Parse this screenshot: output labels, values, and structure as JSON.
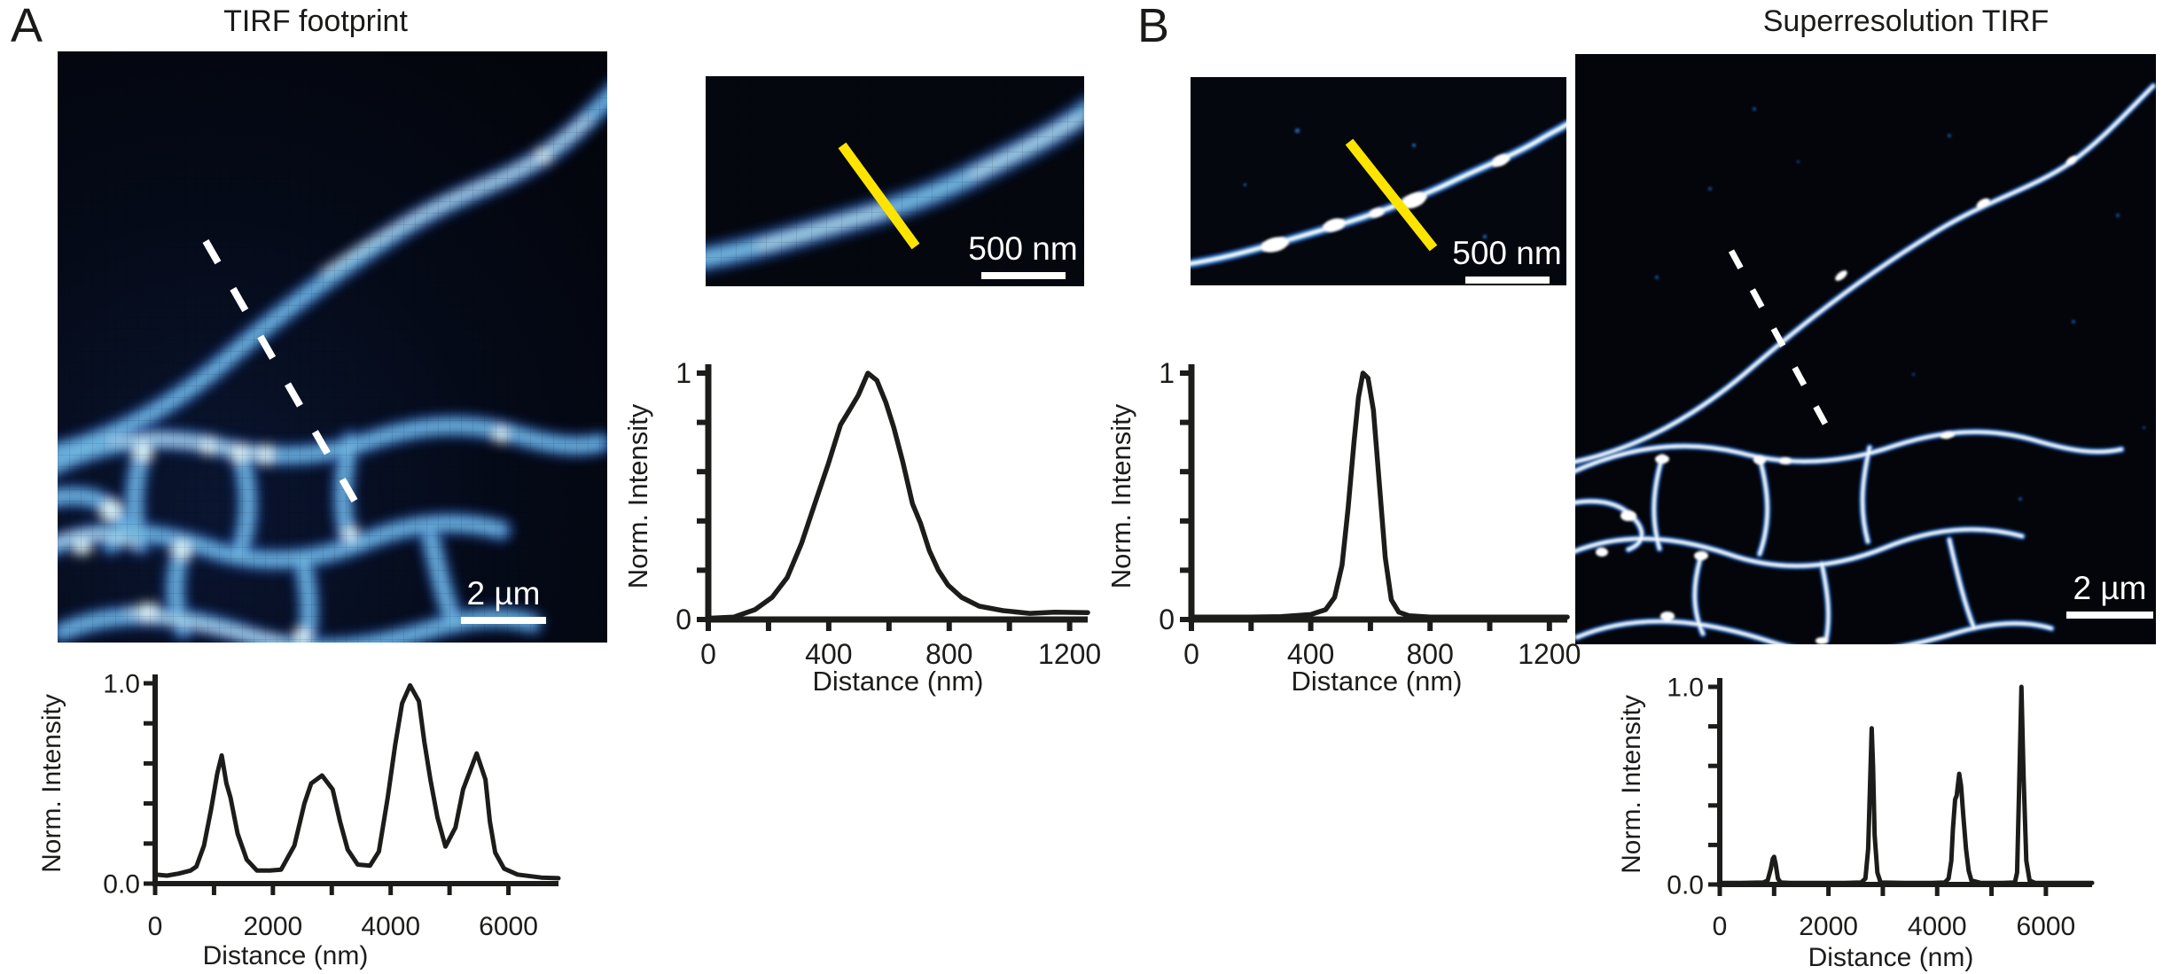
{
  "panels": {
    "A": {
      "label": "A",
      "title": "TIRF footprint",
      "image_scalebar": "2 µm",
      "inset_scalebar": "500 nm"
    },
    "B": {
      "label": "B",
      "title": "Superresolution TIRF",
      "image_scalebar": "2 µm",
      "inset_scalebar": "500 nm"
    }
  },
  "colors": {
    "ink": "#1c1c1a",
    "profile_marker_yellow": "#ffe400",
    "scalebar_white": "#ffffff",
    "mito_halo_blue": "#16357a",
    "mito_mid_blue": "#2f6fc4",
    "mito_core_cyan": "#e8fcfc",
    "image_background": "#04070e"
  },
  "chart_data": [
    {
      "id": "tirf-footprint-profile",
      "type": "line",
      "title": "",
      "xlabel": "Distance (nm)",
      "ylabel": "Norm. Intensity",
      "xlim": [
        0,
        6850
      ],
      "ylim": [
        0,
        1
      ],
      "grid": false,
      "legend": "none",
      "xticks": [
        0,
        2000,
        4000,
        6000
      ],
      "xtick_labels": [
        "0",
        "2000",
        "4000",
        "6000"
      ],
      "xminor": [
        1000,
        3000,
        5000
      ],
      "yticks": [
        {
          "v": 0,
          "label": "0.0"
        },
        {
          "v": 1,
          "label": "1.0"
        }
      ],
      "yminor": [
        0.2,
        0.4,
        0.6,
        0.8
      ],
      "x": [
        0,
        200,
        400,
        600,
        700,
        830,
        950,
        1055,
        1130,
        1210,
        1280,
        1400,
        1555,
        1730,
        1950,
        2140,
        2365,
        2535,
        2650,
        2835,
        3015,
        3140,
        3270,
        3440,
        3650,
        3800,
        3950,
        4075,
        4195,
        4330,
        4480,
        4570,
        4675,
        4795,
        4930,
        5100,
        5230,
        5460,
        5610,
        5685,
        5775,
        5925,
        6155,
        6560,
        6850
      ],
      "y": [
        0.045,
        0.04,
        0.05,
        0.065,
        0.085,
        0.19,
        0.37,
        0.55,
        0.64,
        0.5,
        0.43,
        0.25,
        0.12,
        0.065,
        0.065,
        0.07,
        0.19,
        0.4,
        0.5,
        0.54,
        0.47,
        0.31,
        0.17,
        0.095,
        0.09,
        0.16,
        0.43,
        0.69,
        0.9,
        0.99,
        0.91,
        0.71,
        0.52,
        0.33,
        0.185,
        0.28,
        0.47,
        0.65,
        0.52,
        0.31,
        0.155,
        0.075,
        0.045,
        0.03,
        0.027
      ]
    },
    {
      "id": "tirf-zoom-profile",
      "type": "line",
      "title": "",
      "xlabel": "Distance (nm)",
      "ylabel": "Norm. Intensity",
      "xlim": [
        0,
        1260
      ],
      "ylim": [
        0,
        1
      ],
      "grid": false,
      "legend": "none",
      "xticks": [
        0,
        400,
        800,
        1200
      ],
      "xtick_labels": [
        "0",
        "400",
        "800",
        "1200"
      ],
      "xminor": [
        200,
        600,
        1000
      ],
      "yticks": [
        {
          "v": 0,
          "label": "0"
        },
        {
          "v": 1,
          "label": "1"
        }
      ],
      "yminor": [
        0.2,
        0.4,
        0.6,
        0.8
      ],
      "x": [
        0,
        85,
        155,
        212,
        262,
        310,
        354,
        398,
        439,
        469,
        498,
        530,
        560,
        590,
        616,
        646,
        678,
        705,
        734,
        764,
        796,
        841,
        900,
        979,
        1068,
        1150,
        1260
      ],
      "y": [
        0.005,
        0.01,
        0.04,
        0.09,
        0.17,
        0.31,
        0.47,
        0.63,
        0.79,
        0.85,
        0.91,
        1.0,
        0.97,
        0.88,
        0.78,
        0.64,
        0.47,
        0.39,
        0.28,
        0.2,
        0.14,
        0.09,
        0.054,
        0.036,
        0.025,
        0.03,
        0.028
      ]
    },
    {
      "id": "sr-zoom-profile",
      "type": "line",
      "title": "",
      "xlabel": "Distance (nm)",
      "ylabel": "Norm. Intensity",
      "xlim": [
        0,
        1260
      ],
      "ylim": [
        0,
        1
      ],
      "grid": false,
      "legend": "none",
      "xticks": [
        0,
        400,
        800,
        1200
      ],
      "xtick_labels": [
        "0",
        "400",
        "800",
        "1200"
      ],
      "xminor": [
        200,
        600,
        1000
      ],
      "yticks": [
        {
          "v": 0,
          "label": "0"
        },
        {
          "v": 1,
          "label": "1"
        }
      ],
      "yminor": [
        0.2,
        0.4,
        0.6,
        0.8
      ],
      "x": [
        0,
        100,
        200,
        300,
        400,
        450,
        480,
        505,
        525,
        545,
        560,
        575,
        592,
        610,
        630,
        650,
        670,
        695,
        730,
        800,
        900,
        1000,
        1100,
        1260
      ],
      "y": [
        0.01,
        0.01,
        0.01,
        0.012,
        0.02,
        0.04,
        0.09,
        0.22,
        0.45,
        0.72,
        0.9,
        1.0,
        0.98,
        0.85,
        0.55,
        0.25,
        0.08,
        0.03,
        0.015,
        0.01,
        0.01,
        0.01,
        0.01,
        0.01
      ]
    },
    {
      "id": "sr-profile",
      "type": "line",
      "title": "",
      "xlabel": "Distance (nm)",
      "ylabel": "Norm. Intensity",
      "xlim": [
        0,
        6850
      ],
      "ylim": [
        0,
        1
      ],
      "grid": false,
      "legend": "none",
      "xticks": [
        0,
        2000,
        4000,
        6000
      ],
      "xtick_labels": [
        "0",
        "2000",
        "4000",
        "6000"
      ],
      "xminor": [
        1000,
        3000,
        5000
      ],
      "yticks": [
        {
          "v": 0,
          "label": "0.0"
        },
        {
          "v": 1,
          "label": "1.0"
        }
      ],
      "yminor": [
        0.2,
        0.4,
        0.6,
        0.8
      ],
      "x": [
        0,
        400,
        800,
        880,
        940,
        975,
        1000,
        1030,
        1070,
        1120,
        1300,
        1800,
        2300,
        2600,
        2680,
        2730,
        2765,
        2795,
        2820,
        2850,
        2900,
        2960,
        3400,
        3900,
        4140,
        4210,
        4260,
        4290,
        4330,
        4360,
        4405,
        4440,
        4480,
        4530,
        4580,
        4630,
        4800,
        5200,
        5430,
        5470,
        5505,
        5550,
        5590,
        5640,
        5700,
        5800,
        6200,
        6850
      ],
      "y": [
        0.008,
        0.008,
        0.01,
        0.02,
        0.08,
        0.13,
        0.14,
        0.1,
        0.03,
        0.01,
        0.008,
        0.008,
        0.008,
        0.01,
        0.03,
        0.18,
        0.5,
        0.79,
        0.6,
        0.25,
        0.06,
        0.01,
        0.008,
        0.008,
        0.01,
        0.03,
        0.12,
        0.28,
        0.43,
        0.45,
        0.56,
        0.5,
        0.35,
        0.18,
        0.07,
        0.02,
        0.008,
        0.008,
        0.01,
        0.06,
        0.45,
        1.0,
        0.55,
        0.12,
        0.02,
        0.008,
        0.008,
        0.008
      ]
    }
  ]
}
